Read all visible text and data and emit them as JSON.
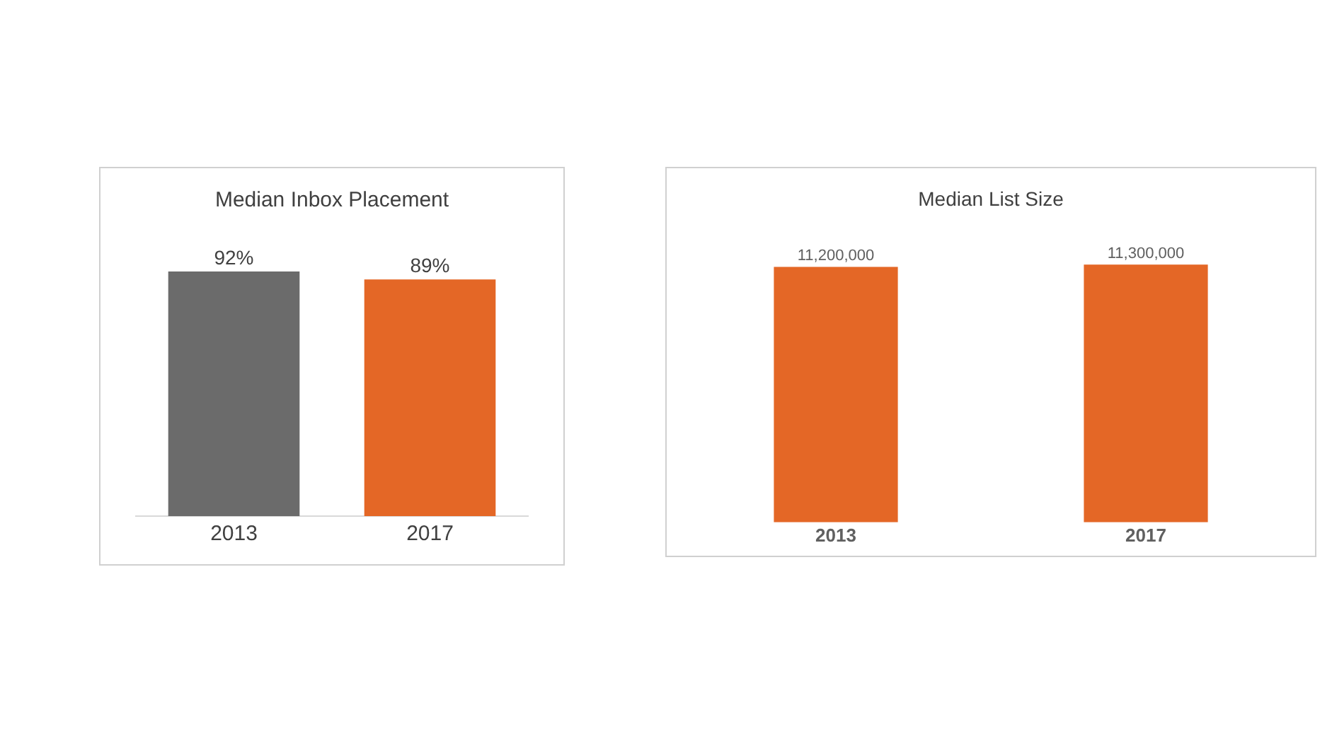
{
  "chart_data": [
    {
      "type": "bar",
      "title": "Median Inbox Placement",
      "categories": [
        "2013",
        "2017"
      ],
      "values": [
        92,
        89
      ],
      "colors": [
        "#6b6b6b",
        "#e46726"
      ],
      "value_labels": [
        "92%",
        "89%"
      ],
      "grid": false,
      "legend": false
    },
    {
      "type": "bar",
      "title": "Median List Size",
      "categories": [
        "2013",
        "2017"
      ],
      "values": [
        11200000,
        11300000
      ],
      "colors": [
        "#e46726",
        "#e46726"
      ],
      "value_labels": [
        "11,200,000",
        "11,300,000"
      ],
      "grid": false,
      "legend": false
    }
  ]
}
